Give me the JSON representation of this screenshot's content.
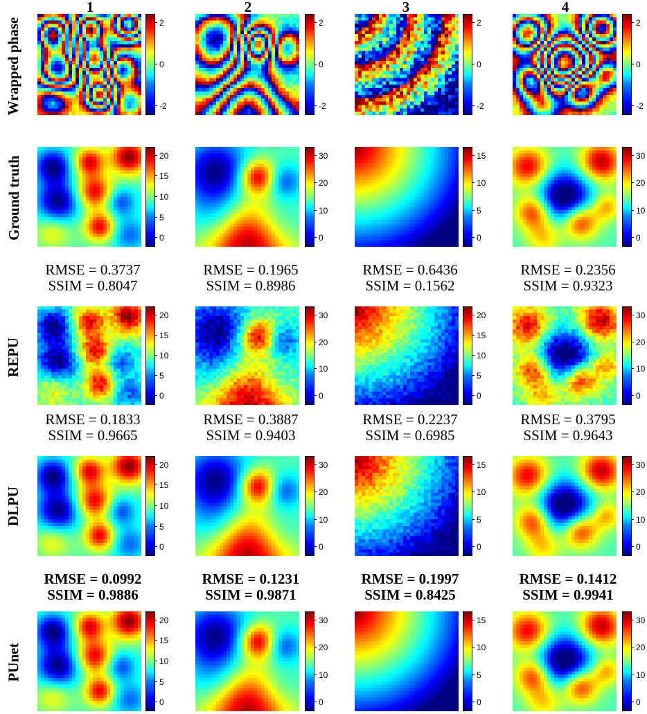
{
  "columns": [
    "1",
    "2",
    "3",
    "4"
  ],
  "rows": [
    {
      "label": "Wrapped phase",
      "ticks": [
        [
          "-2",
          "0",
          "2"
        ],
        [
          "-2",
          "0",
          "2"
        ],
        [
          "-2",
          "0",
          "2"
        ],
        [
          "-2",
          "0",
          "2"
        ]
      ]
    },
    {
      "label": "Ground truth",
      "ticks": [
        [
          "0",
          "5",
          "10",
          "15",
          "20"
        ],
        [
          "0",
          "10",
          "20",
          "30"
        ],
        [
          "0",
          "5",
          "10",
          "15"
        ],
        [
          "0",
          "10",
          "20",
          "30"
        ]
      ]
    },
    {
      "label": "REPU",
      "ticks": [
        [
          "0",
          "5",
          "10",
          "15",
          "20"
        ],
        [
          "0",
          "10",
          "20",
          "30"
        ],
        [
          "0",
          "5",
          "10",
          "15",
          "20"
        ],
        [
          "0",
          "10",
          "20",
          "30"
        ]
      ],
      "metrics": [
        {
          "rmse": "RMSE = 0.3737",
          "ssim": "SSIM = 0.8047"
        },
        {
          "rmse": "RMSE = 0.1965",
          "ssim": "SSIM = 0.8986"
        },
        {
          "rmse": "RMSE = 0.6436",
          "ssim": "SSIM = 0.1562"
        },
        {
          "rmse": "RMSE = 0.2356",
          "ssim": "SSIM = 0.9323"
        }
      ]
    },
    {
      "label": "DLPU",
      "ticks": [
        [
          "0",
          "5",
          "10",
          "15",
          "20"
        ],
        [
          "0",
          "10",
          "20",
          "30"
        ],
        [
          "0",
          "5",
          "10",
          "15"
        ],
        [
          "0",
          "10",
          "20",
          "30"
        ]
      ],
      "metrics": [
        {
          "rmse": "RMSE = 0.1833",
          "ssim": "SSIM = 0.9665"
        },
        {
          "rmse": "RMSE = 0.3887",
          "ssim": "SSIM = 0.9403"
        },
        {
          "rmse": "RMSE = 0.2237",
          "ssim": "SSIM = 0.6985"
        },
        {
          "rmse": "RMSE = 0.3795",
          "ssim": "SSIM = 0.9643"
        }
      ]
    },
    {
      "label": "PUnet",
      "ticks": [
        [
          "0",
          "5",
          "10",
          "15",
          "20"
        ],
        [
          "0",
          "10",
          "20",
          "30"
        ],
        [
          "0",
          "5",
          "10",
          "15"
        ],
        [
          "0",
          "10",
          "20",
          "30"
        ]
      ],
      "metrics": [
        {
          "rmse": "RMSE = 0.0992",
          "ssim": "SSIM = 0.9886"
        },
        {
          "rmse": "RMSE = 0.1231",
          "ssim": "SSIM = 0.9871"
        },
        {
          "rmse": "RMSE = 0.1997",
          "ssim": "SSIM = 0.8425"
        },
        {
          "rmse": "RMSE = 0.1412",
          "ssim": "SSIM = 0.9941"
        }
      ]
    }
  ],
  "colormap": "jet",
  "best_row": "PUnet"
}
